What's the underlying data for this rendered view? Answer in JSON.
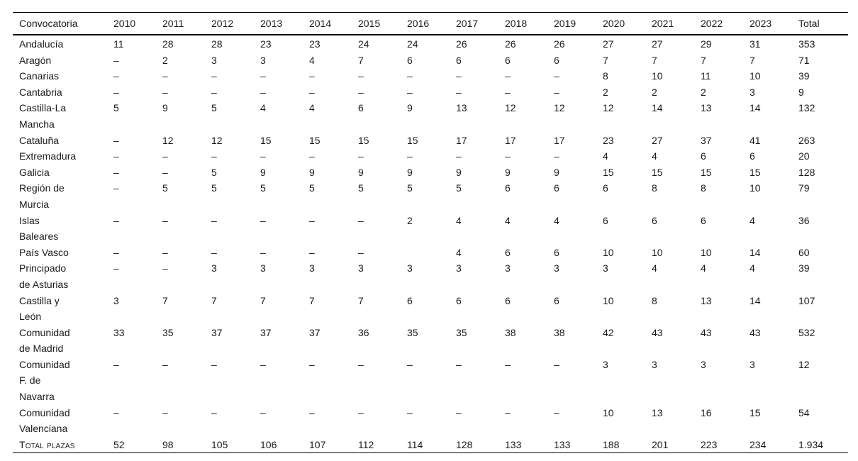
{
  "styles": {
    "background": "#ffffff",
    "text_color": "#1a1a1a",
    "rule_color": "#000000"
  },
  "table": {
    "columns": [
      "Convocatoria",
      "2010",
      "2011",
      "2012",
      "2013",
      "2014",
      "2015",
      "2016",
      "2017",
      "2018",
      "2019",
      "2020",
      "2021",
      "2022",
      "2023",
      "Total"
    ],
    "rows": [
      {
        "label": "Andalucía",
        "values": [
          "11",
          "28",
          "28",
          "23",
          "23",
          "24",
          "24",
          "26",
          "26",
          "26",
          "27",
          "27",
          "29",
          "31",
          "353"
        ]
      },
      {
        "label": "Aragón",
        "values": [
          "–",
          "2",
          "3",
          "3",
          "4",
          "7",
          "6",
          "6",
          "6",
          "6",
          "7",
          "7",
          "7",
          "7",
          "71"
        ]
      },
      {
        "label": "Canarias",
        "values": [
          "–",
          "–",
          "–",
          "–",
          "–",
          "–",
          "–",
          "–",
          "–",
          "–",
          "8",
          "10",
          "11",
          "10",
          "39"
        ]
      },
      {
        "label": "Cantabria",
        "values": [
          "–",
          "–",
          "–",
          "–",
          "–",
          "–",
          "–",
          "–",
          "–",
          "–",
          "2",
          "2",
          "2",
          "3",
          "9"
        ]
      },
      {
        "label": "Castilla-La\nMancha",
        "values": [
          "5",
          "9",
          "5",
          "4",
          "4",
          "6",
          "9",
          "13",
          "12",
          "12",
          "12",
          "14",
          "13",
          "14",
          "132"
        ]
      },
      {
        "label": "Cataluña",
        "values": [
          "–",
          "12",
          "12",
          "15",
          "15",
          "15",
          "15",
          "17",
          "17",
          "17",
          "23",
          "27",
          "37",
          "41",
          "263"
        ]
      },
      {
        "label": "Extremadura",
        "values": [
          "–",
          "–",
          "–",
          "–",
          "–",
          "–",
          "–",
          "–",
          "–",
          "–",
          "4",
          "4",
          "6",
          "6",
          "20"
        ]
      },
      {
        "label": "Galicia",
        "values": [
          "–",
          "–",
          "5",
          "9",
          "9",
          "9",
          "9",
          "9",
          "9",
          "9",
          "15",
          "15",
          "15",
          "15",
          "128"
        ]
      },
      {
        "label": "Región de\nMurcia",
        "values": [
          "–",
          "5",
          "5",
          "5",
          "5",
          "5",
          "5",
          "5",
          "6",
          "6",
          "6",
          "8",
          "8",
          "10",
          "79"
        ]
      },
      {
        "label": "Islas\nBaleares",
        "values": [
          "–",
          "–",
          "–",
          "–",
          "–",
          "–",
          "2",
          "4",
          "4",
          "4",
          "6",
          "6",
          "6",
          "4",
          "36"
        ]
      },
      {
        "label": "País Vasco",
        "values": [
          "–",
          "–",
          "–",
          "–",
          "–",
          "–",
          "",
          "4",
          "6",
          "6",
          "10",
          "10",
          "10",
          "14",
          "60"
        ]
      },
      {
        "label": "Principado\nde Asturias",
        "values": [
          "–",
          "–",
          "3",
          "3",
          "3",
          "3",
          "3",
          "3",
          "3",
          "3",
          "3",
          "4",
          "4",
          "4",
          "39"
        ]
      },
      {
        "label": "Castilla y\nLeón",
        "values": [
          "3",
          "7",
          "7",
          "7",
          "7",
          "7",
          "6",
          "6",
          "6",
          "6",
          "10",
          "8",
          "13",
          "14",
          "107"
        ]
      },
      {
        "label": "Comunidad\nde Madrid",
        "values": [
          "33",
          "35",
          "37",
          "37",
          "37",
          "36",
          "35",
          "35",
          "38",
          "38",
          "42",
          "43",
          "43",
          "43",
          "532"
        ]
      },
      {
        "label": "Comunidad\nF. de\nNavarra",
        "values": [
          "–",
          "–",
          "–",
          "–",
          "–",
          "–",
          "–",
          "–",
          "–",
          "–",
          "3",
          "3",
          "3",
          "3",
          "12"
        ]
      },
      {
        "label": "Comunidad\nValenciana",
        "values": [
          "–",
          "–",
          "–",
          "–",
          "–",
          "–",
          "–",
          "–",
          "–",
          "–",
          "10",
          "13",
          "16",
          "15",
          "54"
        ]
      },
      {
        "label": "Total plazas",
        "small_caps": true,
        "values": [
          "52",
          "98",
          "105",
          "106",
          "107",
          "112",
          "114",
          "128",
          "133",
          "133",
          "188",
          "201",
          "223",
          "234",
          "1.934"
        ]
      }
    ]
  }
}
